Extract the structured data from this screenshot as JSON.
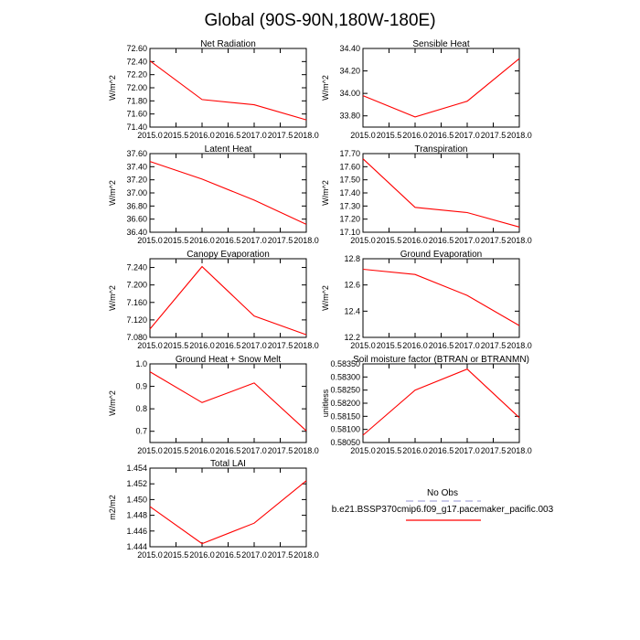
{
  "title": "Global (90S-90N,180W-180E)",
  "colors": {
    "series": "#ff0000",
    "obs": "#a9a9d9",
    "axis": "#000000"
  },
  "legend": {
    "obs_label": "No Obs",
    "model_label": "b.e21.BSSP370cmip6.f09_g17.pacemaker_pacific.003"
  },
  "chart_data": [
    {
      "type": "line",
      "title": "Net Radiation",
      "ylabel": "W/m^2",
      "x": [
        2015,
        2016,
        2017,
        2018
      ],
      "values": [
        72.41,
        71.82,
        71.74,
        71.51
      ],
      "xlim": [
        2015.0,
        2018.0
      ],
      "xticks": [
        "2015.0",
        "2015.5",
        "2016.0",
        "2016.5",
        "2017.0",
        "2017.5",
        "2018.0"
      ],
      "ylim": [
        71.4,
        72.6
      ],
      "yticks": [
        "71.40",
        "71.60",
        "71.80",
        "72.00",
        "72.20",
        "72.40",
        "72.60"
      ]
    },
    {
      "type": "line",
      "title": "Sensible Heat",
      "ylabel": "W/m^2",
      "x": [
        2015,
        2016,
        2017,
        2018
      ],
      "values": [
        33.98,
        33.79,
        33.93,
        34.31
      ],
      "xlim": [
        2015.0,
        2018.0
      ],
      "xticks": [
        "2015.0",
        "2015.5",
        "2016.0",
        "2016.5",
        "2017.0",
        "2017.5",
        "2018.0"
      ],
      "ylim": [
        33.7,
        34.4
      ],
      "yticks": [
        "33.80",
        "34.00",
        "34.20",
        "34.40"
      ]
    },
    {
      "type": "line",
      "title": "Latent Heat",
      "ylabel": "W/m^2",
      "x": [
        2015,
        2016,
        2017,
        2018
      ],
      "values": [
        37.48,
        37.21,
        36.89,
        36.52
      ],
      "xlim": [
        2015.0,
        2018.0
      ],
      "xticks": [
        "2015.0",
        "2015.5",
        "2016.0",
        "2016.5",
        "2017.0",
        "2017.5",
        "2018.0"
      ],
      "ylim": [
        36.4,
        37.6
      ],
      "yticks": [
        "36.40",
        "36.60",
        "36.80",
        "37.00",
        "37.20",
        "37.40",
        "37.60"
      ]
    },
    {
      "type": "line",
      "title": "Transpiration",
      "ylabel": "W/m^2",
      "x": [
        2015,
        2016,
        2017,
        2018
      ],
      "values": [
        17.66,
        17.29,
        17.25,
        17.14
      ],
      "xlim": [
        2015.0,
        2018.0
      ],
      "xticks": [
        "2015.0",
        "2015.5",
        "2016.0",
        "2016.5",
        "2017.0",
        "2017.5",
        "2018.0"
      ],
      "ylim": [
        17.1,
        17.7
      ],
      "yticks": [
        "17.10",
        "17.20",
        "17.30",
        "17.40",
        "17.50",
        "17.60",
        "17.70"
      ]
    },
    {
      "type": "line",
      "title": "Canopy Evaporation",
      "ylabel": "W/m^2",
      "x": [
        2015,
        2016,
        2017,
        2018
      ],
      "values": [
        7.099,
        7.242,
        7.129,
        7.086
      ],
      "xlim": [
        2015.0,
        2018.0
      ],
      "xticks": [
        "2015.0",
        "2015.5",
        "2016.0",
        "2016.5",
        "2017.0",
        "2017.5",
        "2018.0"
      ],
      "ylim": [
        7.08,
        7.26
      ],
      "yticks": [
        "7.080",
        "7.120",
        "7.160",
        "7.200",
        "7.240"
      ]
    },
    {
      "type": "line",
      "title": "Ground Evaporation",
      "ylabel": "W/m^2",
      "x": [
        2015,
        2016,
        2017,
        2018
      ],
      "values": [
        12.72,
        12.68,
        12.52,
        12.29
      ],
      "xlim": [
        2015.0,
        2018.0
      ],
      "xticks": [
        "2015.0",
        "2015.5",
        "2016.0",
        "2016.5",
        "2017.0",
        "2017.5",
        "2018.0"
      ],
      "ylim": [
        12.2,
        12.8
      ],
      "yticks": [
        "12.2",
        "12.4",
        "12.6",
        "12.8"
      ]
    },
    {
      "type": "line",
      "title": "Ground Heat + Snow Melt",
      "ylabel": "W/m^2",
      "x": [
        2015,
        2016,
        2017,
        2018
      ],
      "values": [
        0.965,
        0.828,
        0.915,
        0.702
      ],
      "xlim": [
        2015.0,
        2018.0
      ],
      "xticks": [
        "2015.0",
        "2015.5",
        "2016.0",
        "2016.5",
        "2017.0",
        "2017.5",
        "2018.0"
      ],
      "ylim": [
        0.65,
        1.0
      ],
      "yticks": [
        "0.7",
        "0.8",
        "0.9",
        "1.0"
      ]
    },
    {
      "type": "line",
      "title": "Soil moisture factor (BTRAN or BTRANMN)",
      "ylabel": "unitless",
      "x": [
        2015,
        2016,
        2017,
        2018
      ],
      "values": [
        0.58078,
        0.5825,
        0.5833,
        0.58145
      ],
      "xlim": [
        2015.0,
        2018.0
      ],
      "xticks": [
        "2015.0",
        "2015.5",
        "2016.0",
        "2016.5",
        "2017.0",
        "2017.5",
        "2018.0"
      ],
      "ylim": [
        0.5805,
        0.5835
      ],
      "yticks": [
        "0.58050",
        "0.58100",
        "0.58150",
        "0.58200",
        "0.58250",
        "0.58300",
        "0.58350"
      ]
    },
    {
      "type": "line",
      "title": "Total LAI",
      "ylabel": "m2/m2",
      "x": [
        2015,
        2016,
        2017,
        2018
      ],
      "values": [
        1.4491,
        1.4444,
        1.447,
        1.4524
      ],
      "xlim": [
        2015.0,
        2018.0
      ],
      "xticks": [
        "2015.0",
        "2015.5",
        "2016.0",
        "2016.5",
        "2017.0",
        "2017.5",
        "2018.0"
      ],
      "ylim": [
        1.444,
        1.454
      ],
      "yticks": [
        "1.444",
        "1.446",
        "1.448",
        "1.450",
        "1.452",
        "1.454"
      ]
    }
  ]
}
